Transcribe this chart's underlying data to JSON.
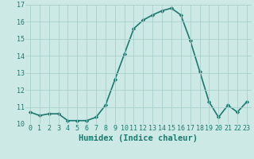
{
  "x": [
    0,
    1,
    2,
    3,
    4,
    5,
    6,
    7,
    8,
    9,
    10,
    11,
    12,
    13,
    14,
    15,
    16,
    17,
    18,
    19,
    20,
    21,
    22,
    23
  ],
  "y": [
    10.7,
    10.5,
    10.6,
    10.6,
    10.2,
    10.2,
    10.2,
    10.4,
    11.1,
    12.6,
    14.1,
    15.6,
    16.1,
    16.4,
    16.65,
    16.8,
    16.4,
    14.9,
    13.1,
    11.3,
    10.4,
    11.1,
    10.7,
    11.3
  ],
  "line_color": "#1a7a6e",
  "marker": "D",
  "marker_size": 2.2,
  "bg_color": "#cce9e5",
  "grid_color": "#aacfcb",
  "xlabel": "Humidex (Indice chaleur)",
  "ylim": [
    10,
    17
  ],
  "xlim_min": -0.5,
  "xlim_max": 23.5,
  "yticks": [
    10,
    11,
    12,
    13,
    14,
    15,
    16,
    17
  ],
  "xticks": [
    0,
    1,
    2,
    3,
    4,
    5,
    6,
    7,
    8,
    9,
    10,
    11,
    12,
    13,
    14,
    15,
    16,
    17,
    18,
    19,
    20,
    21,
    22,
    23
  ],
  "font_color": "#1a7a6e",
  "tick_fontsize": 6.0,
  "xlabel_fontsize": 7.5,
  "line_width": 1.2
}
